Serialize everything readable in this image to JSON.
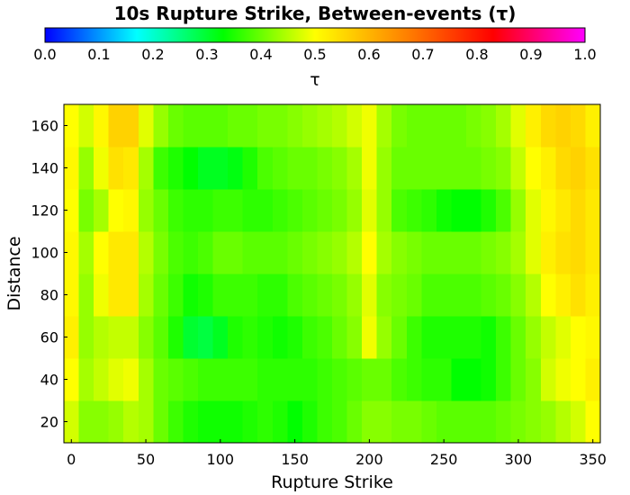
{
  "chart_data": {
    "type": "heatmap",
    "title": "10s Rupture Strike, Between-events (τ)",
    "xlabel": "Rupture Strike",
    "ylabel": "Distance",
    "colorbar_label": "τ",
    "xlim": [
      -5,
      355
    ],
    "ylim": [
      10,
      170
    ],
    "color_range": [
      0.0,
      1.0
    ],
    "x_ticks": [
      "0",
      "50",
      "100",
      "150",
      "200",
      "250",
      "300",
      "350"
    ],
    "y_ticks": [
      "20",
      "40",
      "60",
      "80",
      "100",
      "120",
      "140",
      "160"
    ],
    "colorbar_ticks": [
      "0.0",
      "0.1",
      "0.2",
      "0.3",
      "0.4",
      "0.5",
      "0.6",
      "0.7",
      "0.8",
      "0.9",
      "1.0"
    ],
    "x_centers": [
      0,
      10,
      20,
      30,
      40,
      50,
      60,
      70,
      80,
      90,
      100,
      110,
      120,
      130,
      140,
      150,
      160,
      170,
      180,
      190,
      200,
      210,
      220,
      230,
      240,
      250,
      260,
      270,
      280,
      290,
      300,
      310,
      320,
      330,
      340,
      350
    ],
    "y_centers": [
      20,
      40,
      60,
      80,
      100,
      120,
      140,
      160
    ],
    "values": [
      [
        0.47,
        0.42,
        0.42,
        0.43,
        0.45,
        0.44,
        0.4,
        0.37,
        0.35,
        0.34,
        0.34,
        0.34,
        0.35,
        0.36,
        0.35,
        0.33,
        0.35,
        0.37,
        0.38,
        0.4,
        0.42,
        0.42,
        0.41,
        0.41,
        0.4,
        0.39,
        0.39,
        0.39,
        0.39,
        0.4,
        0.41,
        0.42,
        0.43,
        0.45,
        0.47,
        0.5
      ],
      [
        0.5,
        0.44,
        0.46,
        0.48,
        0.49,
        0.44,
        0.4,
        0.39,
        0.38,
        0.37,
        0.37,
        0.37,
        0.37,
        0.36,
        0.36,
        0.36,
        0.36,
        0.37,
        0.38,
        0.39,
        0.4,
        0.4,
        0.38,
        0.37,
        0.36,
        0.36,
        0.33,
        0.33,
        0.34,
        0.37,
        0.4,
        0.42,
        0.47,
        0.49,
        0.5,
        0.52
      ],
      [
        0.52,
        0.43,
        0.45,
        0.46,
        0.46,
        0.42,
        0.39,
        0.35,
        0.3,
        0.29,
        0.31,
        0.35,
        0.36,
        0.35,
        0.34,
        0.35,
        0.37,
        0.38,
        0.4,
        0.42,
        0.49,
        0.43,
        0.4,
        0.37,
        0.35,
        0.35,
        0.35,
        0.35,
        0.34,
        0.37,
        0.4,
        0.43,
        0.46,
        0.48,
        0.5,
        0.51
      ],
      [
        0.51,
        0.43,
        0.49,
        0.53,
        0.53,
        0.44,
        0.4,
        0.37,
        0.34,
        0.35,
        0.37,
        0.37,
        0.37,
        0.36,
        0.36,
        0.38,
        0.39,
        0.4,
        0.41,
        0.43,
        0.48,
        0.42,
        0.41,
        0.4,
        0.38,
        0.38,
        0.38,
        0.38,
        0.39,
        0.4,
        0.42,
        0.45,
        0.5,
        0.52,
        0.54,
        0.52
      ],
      [
        0.51,
        0.44,
        0.5,
        0.53,
        0.53,
        0.45,
        0.41,
        0.38,
        0.37,
        0.38,
        0.4,
        0.4,
        0.39,
        0.39,
        0.39,
        0.4,
        0.41,
        0.42,
        0.43,
        0.45,
        0.5,
        0.44,
        0.42,
        0.41,
        0.4,
        0.4,
        0.4,
        0.4,
        0.41,
        0.42,
        0.44,
        0.48,
        0.52,
        0.54,
        0.55,
        0.53
      ],
      [
        0.5,
        0.41,
        0.44,
        0.5,
        0.51,
        0.43,
        0.4,
        0.37,
        0.36,
        0.36,
        0.37,
        0.37,
        0.36,
        0.36,
        0.37,
        0.38,
        0.39,
        0.4,
        0.41,
        0.43,
        0.48,
        0.43,
        0.38,
        0.37,
        0.36,
        0.34,
        0.33,
        0.33,
        0.35,
        0.38,
        0.43,
        0.48,
        0.51,
        0.53,
        0.55,
        0.53
      ],
      [
        0.51,
        0.43,
        0.49,
        0.54,
        0.53,
        0.44,
        0.37,
        0.35,
        0.33,
        0.31,
        0.31,
        0.32,
        0.35,
        0.38,
        0.39,
        0.4,
        0.4,
        0.41,
        0.42,
        0.44,
        0.49,
        0.43,
        0.4,
        0.4,
        0.4,
        0.4,
        0.4,
        0.4,
        0.41,
        0.42,
        0.46,
        0.5,
        0.52,
        0.55,
        0.56,
        0.54
      ],
      [
        0.5,
        0.47,
        0.51,
        0.56,
        0.56,
        0.48,
        0.43,
        0.4,
        0.39,
        0.39,
        0.39,
        0.4,
        0.4,
        0.41,
        0.41,
        0.42,
        0.43,
        0.44,
        0.45,
        0.47,
        0.49,
        0.44,
        0.41,
        0.4,
        0.4,
        0.4,
        0.4,
        0.41,
        0.42,
        0.44,
        0.48,
        0.52,
        0.55,
        0.56,
        0.55,
        0.52
      ]
    ]
  }
}
